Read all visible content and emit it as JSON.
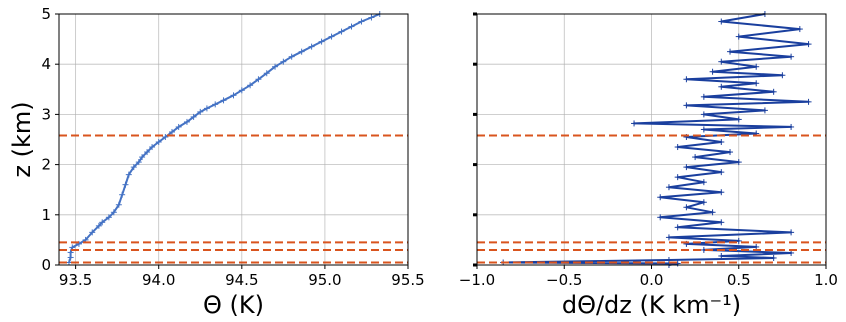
{
  "chart_data": [
    {
      "type": "line",
      "panel": "left",
      "xlabel": "Θ (K)",
      "ylabel": "z (km)",
      "xlim": [
        93.4,
        95.5
      ],
      "ylim": [
        0,
        5
      ],
      "xticks": [
        "93.5",
        "94.0",
        "94.5",
        "95.0",
        "95.5"
      ],
      "xtick_values": [
        93.5,
        94.0,
        94.5,
        95.0,
        95.5
      ],
      "yticks": [
        "0",
        "1",
        "2",
        "3",
        "4",
        "5"
      ],
      "ytick_values": [
        0,
        1,
        2,
        3,
        4,
        5
      ],
      "grid": true,
      "series": [
        {
          "color": "#4472c4",
          "marker": "+",
          "x": [
            93.46,
            93.47,
            93.47,
            93.48,
            93.52,
            93.56,
            93.6,
            93.64,
            93.66,
            93.7,
            93.73,
            93.76,
            93.78,
            93.8,
            93.82,
            93.85,
            93.88,
            93.9,
            93.93,
            93.96,
            94.0,
            94.04,
            94.08,
            94.12,
            94.17,
            94.21,
            94.25,
            94.29,
            94.34,
            94.39,
            94.45,
            94.5,
            94.55,
            94.6,
            94.65,
            94.7,
            94.75,
            94.8,
            94.86,
            94.92,
            94.98,
            95.04,
            95.1,
            95.16,
            95.22,
            95.28,
            95.33
          ],
          "y": [
            0.05,
            0.15,
            0.25,
            0.35,
            0.42,
            0.5,
            0.65,
            0.78,
            0.85,
            0.95,
            1.05,
            1.2,
            1.4,
            1.6,
            1.8,
            1.95,
            2.05,
            2.15,
            2.25,
            2.35,
            2.45,
            2.55,
            2.65,
            2.75,
            2.85,
            2.95,
            3.05,
            3.12,
            3.2,
            3.28,
            3.38,
            3.48,
            3.58,
            3.7,
            3.82,
            3.95,
            4.05,
            4.15,
            4.25,
            4.35,
            4.45,
            4.55,
            4.65,
            4.75,
            4.85,
            4.93,
            5.0
          ]
        }
      ],
      "hlines": [
        0.05,
        0.3,
        0.45,
        2.58
      ],
      "hline_color": "#d9541e"
    },
    {
      "type": "line",
      "panel": "right",
      "xlabel": "dΘ/dz (K km⁻¹)",
      "xlim": [
        -1.0,
        1.0
      ],
      "ylim": [
        0,
        5
      ],
      "xticks": [
        "−1.0",
        "−0.5",
        "0.0",
        "0.5",
        "1.0"
      ],
      "xtick_values": [
        -1.0,
        -0.5,
        0.0,
        0.5,
        1.0
      ],
      "ytick_values": [
        0,
        1,
        2,
        3,
        4,
        5
      ],
      "grid": true,
      "series": [
        {
          "color": "#1a3f9e",
          "marker": "+",
          "x": [
            0.1,
            0.15,
            -0.85,
            0.1,
            0.7,
            0.4,
            0.8,
            0.3,
            0.6,
            0.2,
            0.5,
            0.1,
            0.8,
            0.15,
            0.4,
            0.05,
            0.35,
            0.2,
            0.3,
            0.05,
            0.4,
            0.1,
            0.3,
            0.15,
            0.4,
            0.2,
            0.5,
            0.25,
            0.45,
            0.15,
            0.4,
            0.2,
            0.6,
            0.3,
            0.8,
            -0.1,
            0.5,
            0.3,
            0.65,
            0.2,
            0.9,
            0.3,
            0.7,
            0.4,
            0.6,
            0.2,
            0.75,
            0.35,
            0.6,
            0.4,
            0.8,
            0.45,
            0.9,
            0.5,
            0.85,
            0.4,
            0.65
          ],
          "y": [
            0.0,
            0.03,
            0.05,
            0.1,
            0.14,
            0.18,
            0.24,
            0.3,
            0.36,
            0.42,
            0.48,
            0.55,
            0.65,
            0.75,
            0.85,
            0.95,
            1.05,
            1.15,
            1.25,
            1.35,
            1.45,
            1.55,
            1.65,
            1.75,
            1.85,
            1.95,
            2.05,
            2.15,
            2.25,
            2.35,
            2.45,
            2.55,
            2.62,
            2.7,
            2.75,
            2.82,
            2.9,
            3.0,
            3.08,
            3.18,
            3.25,
            3.35,
            3.45,
            3.55,
            3.62,
            3.7,
            3.78,
            3.85,
            3.95,
            4.05,
            4.15,
            4.25,
            4.4,
            4.55,
            4.7,
            4.85,
            5.0
          ]
        }
      ],
      "hlines": [
        0.05,
        0.3,
        0.45,
        2.58
      ],
      "hline_color": "#d9541e"
    }
  ]
}
